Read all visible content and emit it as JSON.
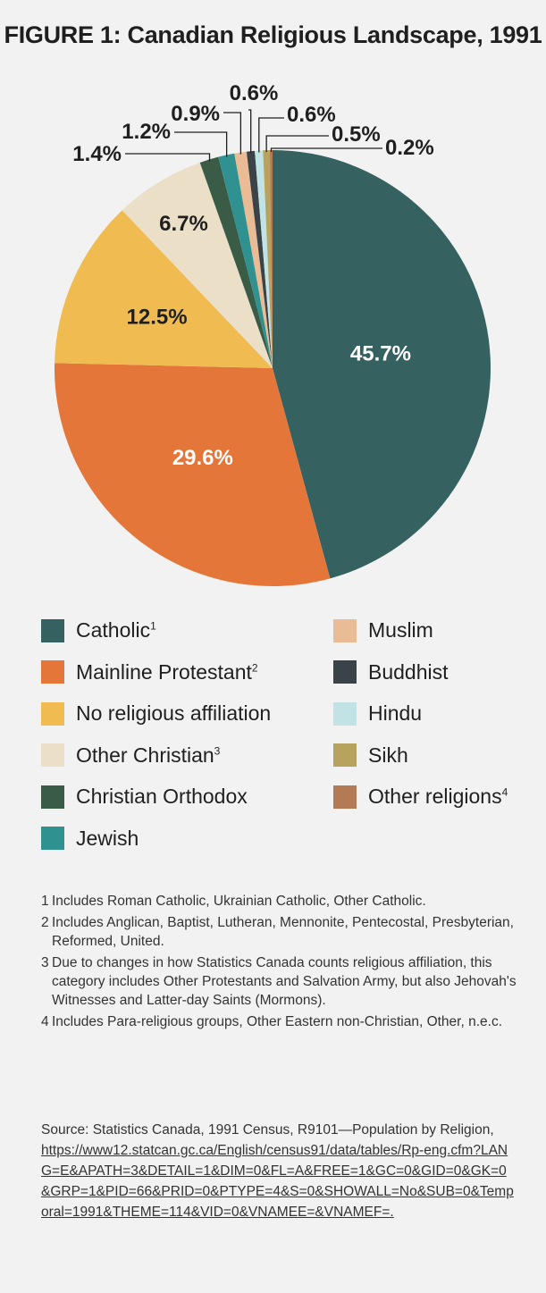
{
  "title": "FIGURE 1: Canadian Religious Landscape, 1991",
  "chart_data": {
    "type": "pie",
    "title": "FIGURE 1: Canadian Religious Landscape, 1991",
    "categories": [
      "Catholic",
      "Mainline Protestant",
      "No religious affiliation",
      "Other Christian",
      "Christian Orthodox",
      "Jewish",
      "Muslim",
      "Buddhist",
      "Hindu",
      "Sikh",
      "Other religions"
    ],
    "values": [
      45.7,
      29.6,
      12.5,
      6.7,
      1.4,
      1.2,
      0.9,
      0.6,
      0.6,
      0.5,
      0.2
    ],
    "labels": [
      "45.7%",
      "29.6%",
      "12.5%",
      "6.7%",
      "1.4%",
      "1.2%",
      "0.9%",
      "0.6%",
      "0.6%",
      "0.5%",
      "0.2%"
    ],
    "colors": [
      "#356160",
      "#e5763a",
      "#f0bc52",
      "#ebdfc8",
      "#3a5b45",
      "#2f9290",
      "#e9bc96",
      "#3a4448",
      "#c2e3e5",
      "#b8a35e",
      "#b27b55"
    ],
    "legend_position": "bottom"
  },
  "legend": {
    "items": [
      {
        "label": "Catholic",
        "sup": "1"
      },
      {
        "label": "Mainline Protestant",
        "sup": "2"
      },
      {
        "label": "No religious affiliation",
        "sup": ""
      },
      {
        "label": "Other Christian",
        "sup": "3"
      },
      {
        "label": "Christian Orthodox",
        "sup": ""
      },
      {
        "label": "Jewish",
        "sup": ""
      },
      {
        "label": "Muslim",
        "sup": ""
      },
      {
        "label": "Buddhist",
        "sup": ""
      },
      {
        "label": "Hindu",
        "sup": ""
      },
      {
        "label": "Sikh",
        "sup": ""
      },
      {
        "label": "Other religions",
        "sup": "4"
      }
    ]
  },
  "notes": [
    {
      "num": "1",
      "text": "Includes Roman Catholic, Ukrainian Catholic, Other Catholic."
    },
    {
      "num": "2",
      "text": "Includes Anglican, Baptist, Lutheran, Mennonite, Pentecostal, Presbyterian, Reformed, United."
    },
    {
      "num": "3",
      "text": "Due to changes in how Statistics Canada counts religious affiliation, this category includes Other Protestants and Salvation Army, but also Jehovah's Witnesses and Latter-day Saints (Mormons)."
    },
    {
      "num": "4",
      "text": "Includes Para-religious groups, Other Eastern non-Christian, Other, n.e.c."
    }
  ],
  "source": {
    "prefix": "Source: Statistics Canada, 1991 Census, R9101—Population by Religion,",
    "url": "https://www12.statcan.gc.ca/English/census91/data/tables/Rp-eng.cfm?LANG=E&APATH=3&DETAIL=1&DIM=0&FL=A&FREE=1&GC=0&GID=0&GK=0&GRP=1&PID=66&PRID=0&PTYPE=4&S=0&SHOWALL=No&SUB=0&Temporal=1991&THEME=114&VID=0&VNAMEE=&VNAMEF=."
  }
}
